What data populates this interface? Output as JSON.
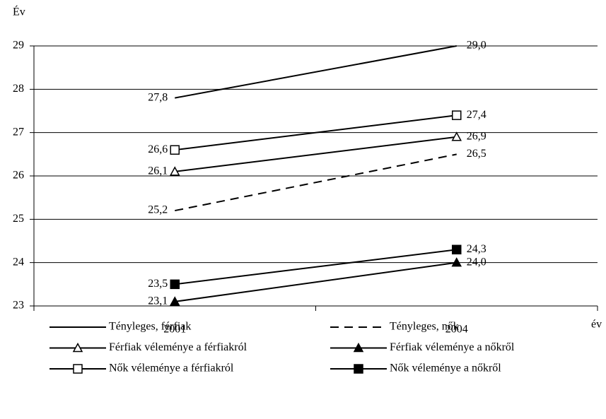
{
  "chart_data": {
    "type": "line",
    "y_label": "Év",
    "x_label": "év",
    "categories": [
      "2001",
      "2004"
    ],
    "ylim": [
      23,
      29
    ],
    "yticks": [
      23,
      24,
      25,
      26,
      27,
      28,
      29
    ],
    "grid": true,
    "legend_position": "bottom",
    "series": [
      {
        "name": "Tényleges, férfiak",
        "color": "#000000",
        "line_style": "solid",
        "marker": "none",
        "marker_filled": false,
        "values": [
          27.8,
          29.0
        ],
        "value_labels": [
          "27,8",
          "29,0"
        ]
      },
      {
        "name": "Tényleges, nők",
        "color": "#000000",
        "line_style": "dashed",
        "marker": "none",
        "marker_filled": false,
        "values": [
          25.2,
          26.5
        ],
        "value_labels": [
          "25,2",
          "26,5"
        ]
      },
      {
        "name": "Férfiak véleménye a férfiakról",
        "color": "#000000",
        "line_style": "solid",
        "marker": "triangle",
        "marker_filled": false,
        "values": [
          26.1,
          26.9
        ],
        "value_labels": [
          "26,1",
          "26,9"
        ]
      },
      {
        "name": "Férfiak véleménye a nőkről",
        "color": "#000000",
        "line_style": "solid",
        "marker": "triangle",
        "marker_filled": true,
        "values": [
          23.1,
          24.0
        ],
        "value_labels": [
          "23,1",
          "24,0"
        ]
      },
      {
        "name": "Nők véleménye a férfiakról",
        "color": "#000000",
        "line_style": "solid",
        "marker": "square",
        "marker_filled": false,
        "values": [
          26.6,
          27.4
        ],
        "value_labels": [
          "26,6",
          "27,4"
        ]
      },
      {
        "name": "Nők véleménye a nőkről",
        "color": "#000000",
        "line_style": "solid",
        "marker": "square",
        "marker_filled": true,
        "values": [
          23.5,
          24.3
        ],
        "value_labels": [
          "23,5",
          "24,3"
        ]
      }
    ]
  }
}
